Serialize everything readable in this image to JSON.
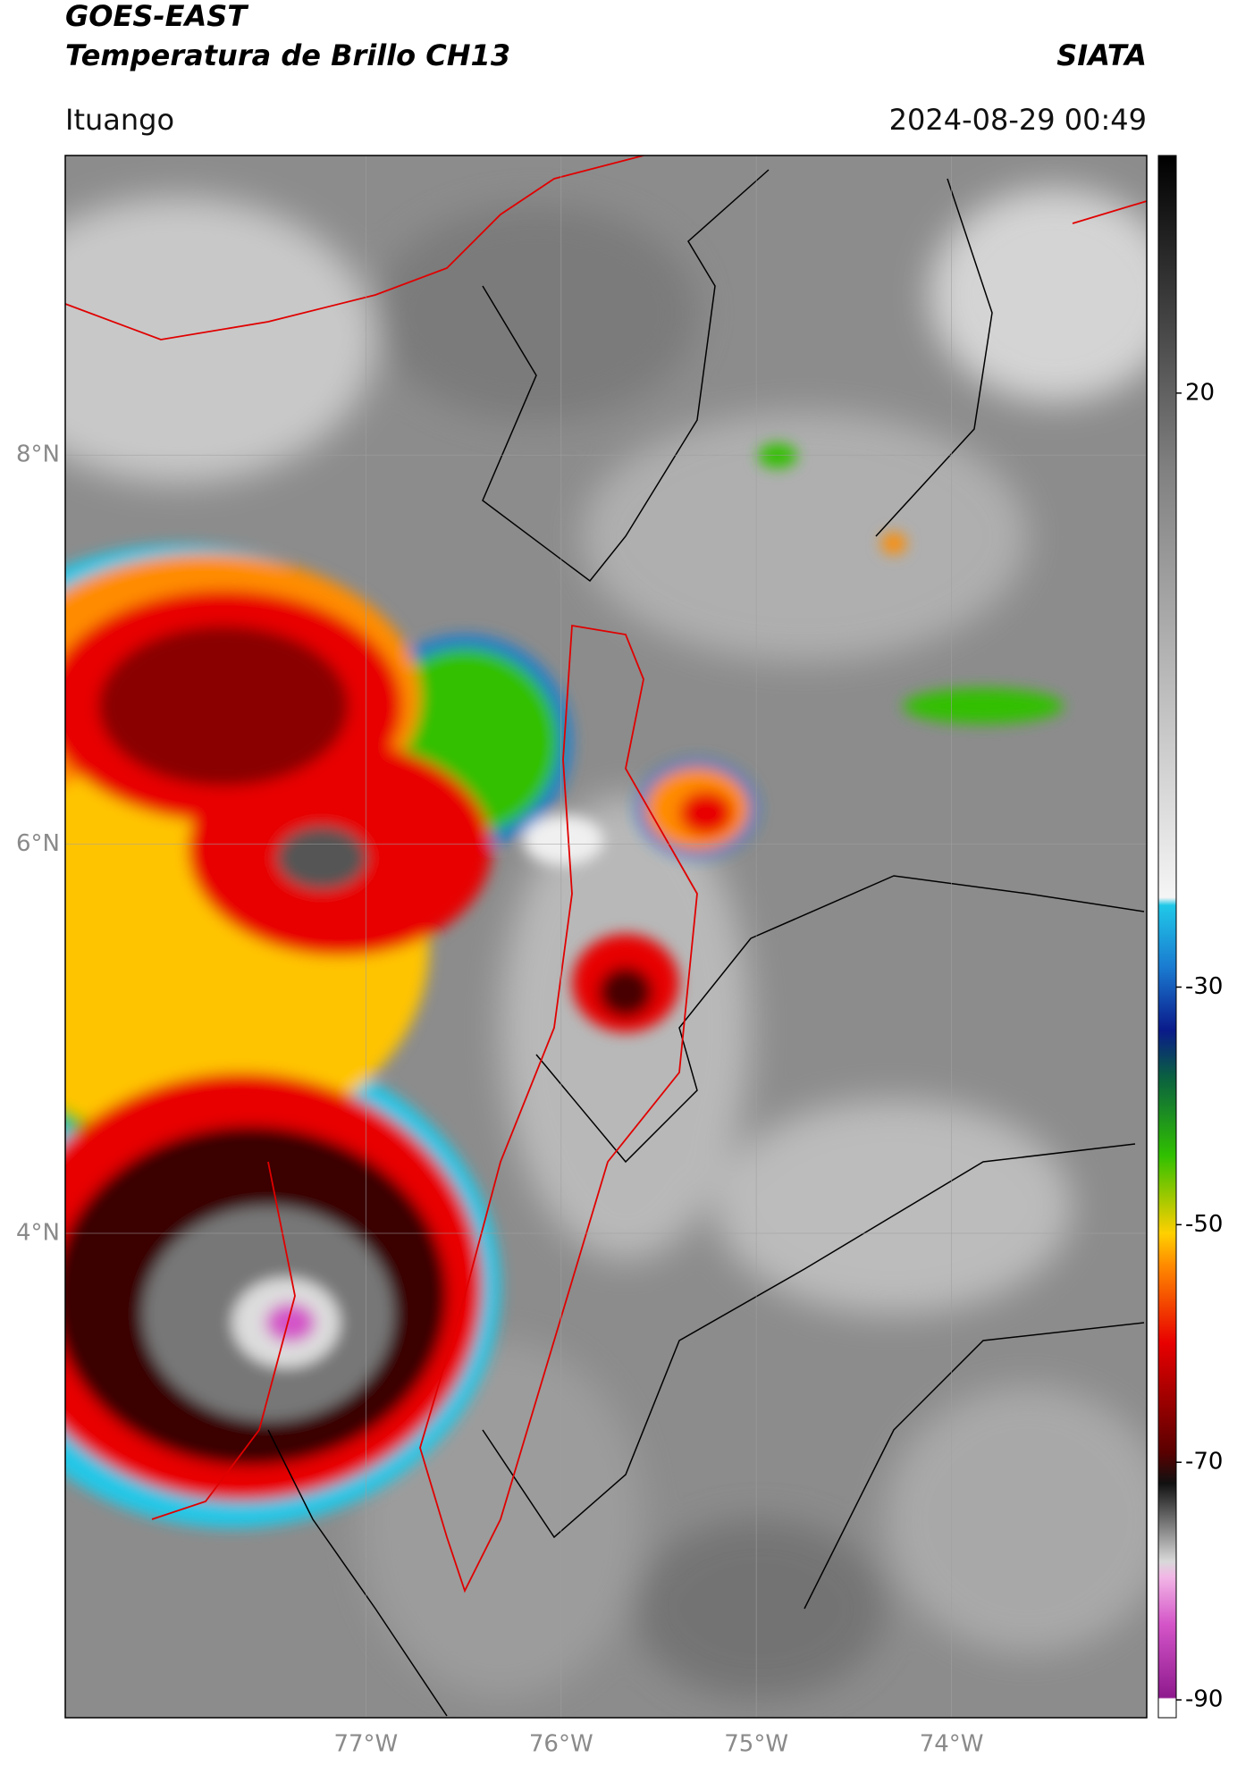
{
  "header": {
    "satellite": "GOES-EAST",
    "product": "Temperatura de Brillo CH13",
    "agency": "SIATA",
    "region": "Ituango",
    "datetime": "2024-08-29 00:49"
  },
  "map": {
    "xlim": [
      -78.54,
      -73.0
    ],
    "ylim": [
      1.51,
      9.54
    ],
    "xticks": [
      {
        "value": -77,
        "label": "77°W"
      },
      {
        "value": -76,
        "label": "76°W"
      },
      {
        "value": -75,
        "label": "75°W"
      },
      {
        "value": -74,
        "label": "74°W"
      }
    ],
    "yticks": [
      {
        "value": 8,
        "label": "8°N"
      },
      {
        "value": 6,
        "label": "6°N"
      },
      {
        "value": 4,
        "label": "4°N"
      }
    ],
    "grid": true
  },
  "colorbar": {
    "lim": [
      -91.5,
      40
    ],
    "ticks": [
      20,
      -30,
      -50,
      -70,
      -90
    ]
  }
}
